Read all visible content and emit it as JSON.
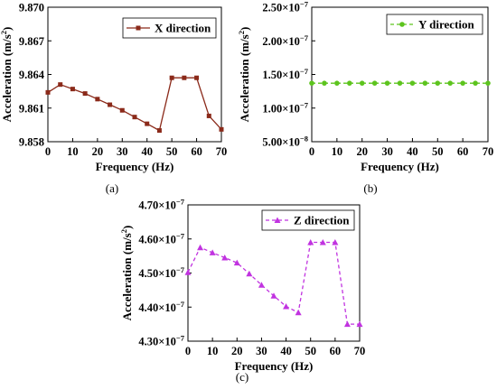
{
  "chart_data": [
    {
      "type": "line",
      "panel_label": "(a)",
      "xlabel": "Frequency (Hz)",
      "ylabel": "Acceleration (m/s",
      "ylabel_sup": "2",
      "ylabel_end": ")",
      "xlim": [
        0,
        70
      ],
      "ylim": [
        9.858,
        9.87
      ],
      "xticks": [
        0,
        10,
        20,
        30,
        40,
        50,
        60,
        70
      ],
      "yticks": [
        {
          "v": 9.858,
          "m": "9.858"
        },
        {
          "v": 9.861,
          "m": "9.861"
        },
        {
          "v": 9.864,
          "m": "9.864"
        },
        {
          "v": 9.867,
          "m": "9.867"
        },
        {
          "v": 9.87,
          "m": "9.870"
        }
      ],
      "legend_position": "top-right",
      "grid": false,
      "series": [
        {
          "name": "X direction",
          "color": "#8B2A1A",
          "line": "solid",
          "marker": "square",
          "x": [
            0,
            5,
            10,
            15,
            20,
            25,
            30,
            35,
            40,
            45,
            50,
            55,
            60,
            65,
            70
          ],
          "y": [
            9.8624,
            9.8631,
            9.8627,
            9.8623,
            9.8618,
            9.8613,
            9.8608,
            9.8602,
            9.8596,
            9.859,
            9.8637,
            9.8637,
            9.8637,
            9.8603,
            9.8591
          ]
        }
      ]
    },
    {
      "type": "line",
      "panel_label": "(b)",
      "xlabel": "Frequency (Hz)",
      "ylabel": "Acceleration (m/s",
      "ylabel_sup": "2",
      "ylabel_end": ")",
      "xlim": [
        0,
        70
      ],
      "ylim": [
        5e-08,
        2.5e-07
      ],
      "xticks": [
        0,
        10,
        20,
        30,
        40,
        50,
        60,
        70
      ],
      "yticks": [
        {
          "v": 5e-08,
          "m": "5.00×10",
          "e": "−8"
        },
        {
          "v": 1e-07,
          "m": "1.00×10",
          "e": "−7"
        },
        {
          "v": 1.5e-07,
          "m": "1.50×10",
          "e": "−7"
        },
        {
          "v": 2e-07,
          "m": "2.00×10",
          "e": "−7"
        },
        {
          "v": 2.5e-07,
          "m": "2.50×10",
          "e": "−7"
        }
      ],
      "legend_position": "top-right",
      "grid": false,
      "series": [
        {
          "name": "Y direction",
          "color": "#5DC41E",
          "line": "dashed",
          "marker": "circle",
          "x": [
            0,
            5,
            10,
            15,
            20,
            25,
            30,
            35,
            40,
            45,
            50,
            55,
            60,
            65,
            70
          ],
          "y": [
            1.37e-07,
            1.37e-07,
            1.37e-07,
            1.37e-07,
            1.37e-07,
            1.37e-07,
            1.37e-07,
            1.37e-07,
            1.37e-07,
            1.37e-07,
            1.37e-07,
            1.37e-07,
            1.37e-07,
            1.37e-07,
            1.37e-07
          ]
        }
      ]
    },
    {
      "type": "line",
      "panel_label": "(c)",
      "xlabel": "Frequency (Hz)",
      "ylabel": "Acceleration (m/s",
      "ylabel_sup": "2",
      "ylabel_end": ")",
      "xlim": [
        0,
        70
      ],
      "ylim": [
        4.3e-07,
        4.7e-07
      ],
      "xticks": [
        0,
        10,
        20,
        30,
        40,
        50,
        60,
        70
      ],
      "yticks": [
        {
          "v": 4.3e-07,
          "m": "4.30×10",
          "e": "−7"
        },
        {
          "v": 4.4e-07,
          "m": "4.40×10",
          "e": "−7"
        },
        {
          "v": 4.5e-07,
          "m": "4.50×10",
          "e": "−7"
        },
        {
          "v": 4.6e-07,
          "m": "4.60×10",
          "e": "−7"
        },
        {
          "v": 4.7e-07,
          "m": "4.70×10",
          "e": "−7"
        }
      ],
      "legend_position": "top-right",
      "grid": false,
      "series": [
        {
          "name": "Z direction",
          "color": "#C133E0",
          "line": "dashed",
          "marker": "triangle",
          "x": [
            0,
            5,
            10,
            15,
            20,
            25,
            30,
            35,
            40,
            45,
            50,
            55,
            60,
            65,
            70
          ],
          "y": [
            4.502e-07,
            4.575e-07,
            4.56e-07,
            4.545e-07,
            4.53e-07,
            4.498e-07,
            4.465e-07,
            4.433e-07,
            4.402e-07,
            4.384e-07,
            4.59e-07,
            4.59e-07,
            4.59e-07,
            4.35e-07,
            4.35e-07
          ]
        }
      ]
    }
  ]
}
